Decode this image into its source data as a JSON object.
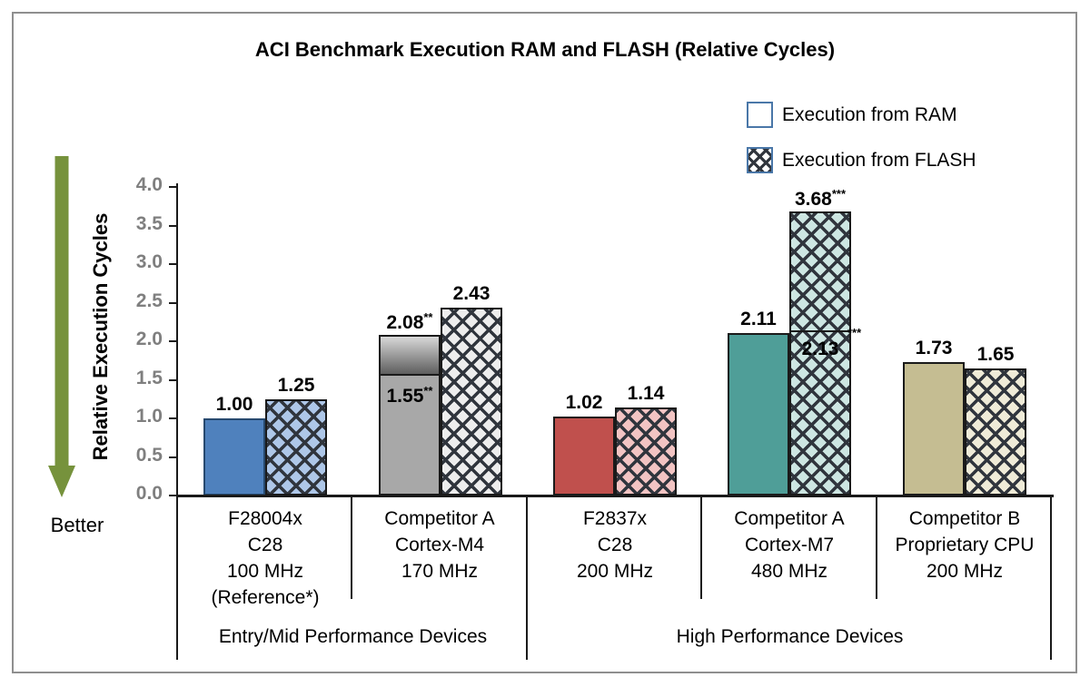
{
  "title": "ACI Benchmark Execution RAM and FLASH (Relative Cycles)",
  "better_label": "Better",
  "legend": {
    "items": [
      {
        "label": "Execution from RAM",
        "swatch": "plain"
      },
      {
        "label": "Execution from FLASH",
        "swatch": "hatch"
      }
    ]
  },
  "colors": {
    "arrow_green": "#76923c",
    "axis_line": "#1a1a1a",
    "tick_label_gray": "#7f7f7f",
    "hatch_line": "#30353d",
    "legend_swatch_border": "#4a77a8"
  },
  "chart_data": {
    "type": "bar",
    "title": "ACI Benchmark Execution RAM and FLASH (Relative Cycles)",
    "ylabel": "Relative Execution Cycles",
    "xlabel": "",
    "ylim": [
      0,
      4
    ],
    "grid": false,
    "legend_position": "top-right",
    "yticks": [
      "0.0",
      "0.5",
      "1.0",
      "1.5",
      "2.0",
      "2.5",
      "3.0",
      "3.5",
      "4.0"
    ],
    "series_names": [
      "Execution from RAM",
      "Execution from FLASH"
    ],
    "groups": [
      {
        "label": "Entry/Mid Performance Devices",
        "span": [
          0,
          1
        ]
      },
      {
        "label": "High Performance Devices",
        "span": [
          2,
          4
        ]
      }
    ],
    "categories": [
      {
        "label_lines": [
          "F28004x",
          "C28",
          "100 MHz",
          "(Reference*)"
        ],
        "ram": {
          "value": 1.0,
          "label": "1.00",
          "sup": "",
          "fill": "solid",
          "color": "#4f81bd",
          "border": "#27496f"
        },
        "flash": {
          "value": 1.25,
          "label": "1.25",
          "sup": "",
          "fill": "hatch",
          "color": "#aec7e8"
        }
      },
      {
        "label_lines": [
          "Competitor A",
          "Cortex-M4",
          "170 MHz"
        ],
        "ram": {
          "value": 2.08,
          "label": "2.08",
          "sup": "**",
          "fill": "solid",
          "color": "#a8a8a8",
          "gradient_top": {
            "from": 1.55,
            "color_top": "#d8d8d8",
            "color_bottom": "#5e5e5e"
          },
          "inner_marker": {
            "value": 1.55,
            "label": "1.55",
            "sup": "**",
            "sup_outside": false
          }
        },
        "flash": {
          "value": 2.43,
          "label": "2.43",
          "sup": "",
          "fill": "hatch",
          "color": "#ededed"
        }
      },
      {
        "label_lines": [
          "F2837x",
          "C28",
          "200 MHz"
        ],
        "ram": {
          "value": 1.02,
          "label": "1.02",
          "sup": "",
          "fill": "solid",
          "color": "#c0504d",
          "border": "#1a1a1a"
        },
        "flash": {
          "value": 1.14,
          "label": "1.14",
          "sup": "",
          "fill": "hatch",
          "color": "#f2c4c3"
        }
      },
      {
        "label_lines": [
          "Competitor A",
          "Cortex-M7",
          "480 MHz"
        ],
        "ram": {
          "value": 2.11,
          "label": "2.11",
          "sup": "",
          "fill": "solid",
          "color": "#4f9e98",
          "border": "#1a1a1a"
        },
        "flash": {
          "value": 3.68,
          "label": "3.68",
          "sup": "***",
          "fill": "hatch",
          "color": "#cde6e2",
          "inner_marker": {
            "value": 2.13,
            "label": "2.13",
            "sup": "***",
            "sup_outside": true
          }
        }
      },
      {
        "label_lines": [
          "Competitor B",
          "Proprietary CPU",
          "200 MHz"
        ],
        "ram": {
          "value": 1.73,
          "label": "1.73",
          "sup": "",
          "fill": "solid",
          "color": "#c5bd92",
          "border": "#1a1a1a"
        },
        "flash": {
          "value": 1.65,
          "label": "1.65",
          "sup": "",
          "fill": "hatch",
          "color": "#efebd8"
        }
      }
    ]
  }
}
